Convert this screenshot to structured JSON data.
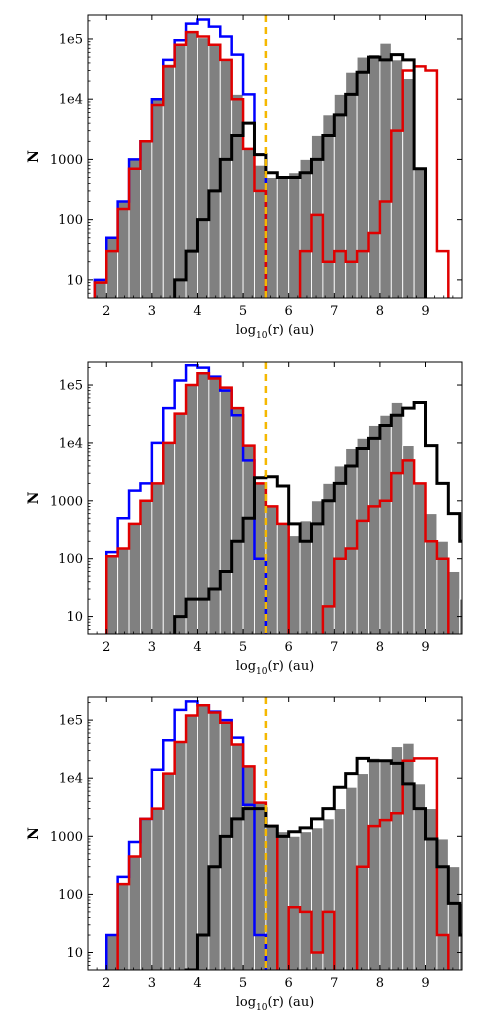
{
  "figure": {
    "panels": [
      {
        "ylabel": "N",
        "xlabel": "log10(r) (au)"
      },
      {
        "ylabel": "N",
        "xlabel": "log10(r) (au)"
      },
      {
        "ylabel": "N",
        "xlabel": "log10(r) (au)"
      }
    ]
  },
  "colors": {
    "gray": "#808080",
    "blue": "#0000ff",
    "red": "#e00000",
    "black": "#000000",
    "vline": "#f5b800"
  },
  "chart_data": [
    {
      "type": "histogram",
      "xlabel": "log10(r) (au)",
      "ylabel": "N",
      "xlim": [
        1.6,
        9.8
      ],
      "ylim": [
        5,
        250000
      ],
      "yscale": "log",
      "xticks": [
        2,
        3,
        4,
        5,
        6,
        7,
        8,
        9
      ],
      "yticks": [
        10,
        100,
        1000,
        10000,
        100000
      ],
      "ytick_labels": [
        "10",
        "100",
        "1000",
        "1e4",
        "1e5"
      ],
      "bin_width": 0.25,
      "vline": 5.5,
      "series": [
        {
          "color": "gray",
          "kind": "filled",
          "start": 1.75,
          "values": [
            10,
            50,
            200,
            1000,
            2000,
            10000,
            38000,
            80000,
            130000,
            105000,
            80000,
            45000,
            12000,
            1500,
            800,
            500,
            500,
            600,
            1000,
            2500,
            5500,
            12000,
            28000,
            50000,
            55000,
            85000,
            45000,
            22000,
            700,
            0
          ]
        },
        {
          "color": "blue",
          "kind": "step",
          "start": 1.75,
          "values": [
            10,
            50,
            200,
            1000,
            2000,
            10000,
            45000,
            95000,
            180000,
            210000,
            160000,
            110000,
            55000,
            12000,
            1200
          ]
        },
        {
          "color": "red",
          "kind": "step",
          "start": 1.75,
          "values": [
            9,
            30,
            150,
            700,
            2000,
            8000,
            35000,
            80000,
            130000,
            110000,
            80000,
            45000,
            10000,
            1500,
            300,
            0,
            0,
            0,
            30,
            120,
            20,
            30,
            20,
            30,
            60,
            200,
            3000,
            30000,
            35000,
            30000,
            30,
            0
          ]
        },
        {
          "color": "black",
          "kind": "step",
          "start": 3.5,
          "values": [
            10,
            30,
            100,
            300,
            1000,
            2500,
            4000,
            1200,
            600,
            500,
            500,
            600,
            1000,
            2500,
            5500,
            12000,
            28000,
            50000,
            45000,
            55000,
            45000,
            700
          ]
        }
      ]
    },
    {
      "type": "histogram",
      "xlabel": "log10(r) (au)",
      "ylabel": "N",
      "xlim": [
        1.6,
        9.8
      ],
      "ylim": [
        5,
        250000
      ],
      "yscale": "log",
      "xticks": [
        2,
        3,
        4,
        5,
        6,
        7,
        8,
        9
      ],
      "yticks": [
        10,
        100,
        1000,
        10000,
        100000
      ],
      "ytick_labels": [
        "10",
        "100",
        "1000",
        "1e4",
        "1e5"
      ],
      "bin_width": 0.25,
      "vline": 5.5,
      "series": [
        {
          "color": "gray",
          "kind": "filled",
          "start": 2.0,
          "values": [
            110,
            150,
            400,
            1000,
            2000,
            10000,
            32000,
            100000,
            160000,
            130000,
            90000,
            40000,
            9000,
            2000,
            800,
            400,
            250,
            450,
            1000,
            2000,
            4000,
            8000,
            12000,
            20000,
            30000,
            50000,
            9000,
            2000,
            600,
            200,
            60,
            20,
            5
          ]
        },
        {
          "color": "blue",
          "kind": "step",
          "start": 2.0,
          "values": [
            130,
            500,
            1500,
            2000,
            10000,
            40000,
            120000,
            220000,
            200000,
            140000,
            80000,
            30000,
            5000,
            100,
            0
          ]
        },
        {
          "color": "red",
          "kind": "step",
          "start": 2.0,
          "values": [
            110,
            150,
            400,
            1000,
            2000,
            10000,
            32000,
            100000,
            160000,
            130000,
            90000,
            40000,
            9000,
            2000,
            800,
            400,
            0,
            0,
            0,
            15,
            100,
            150,
            450,
            800,
            1000,
            3000,
            5000,
            2000,
            200,
            100,
            0
          ]
        },
        {
          "color": "black",
          "kind": "step",
          "start": 3.5,
          "values": [
            10,
            20,
            20,
            30,
            60,
            200,
            500,
            2500,
            2600,
            1800,
            400,
            200,
            400,
            1000,
            2000,
            4000,
            8000,
            12000,
            20000,
            30000,
            40000,
            50000,
            9000,
            2000,
            600,
            200,
            60,
            20,
            5
          ]
        }
      ]
    },
    {
      "type": "histogram",
      "xlabel": "log10(r) (au)",
      "ylabel": "N",
      "xlim": [
        1.6,
        9.8
      ],
      "ylim": [
        5,
        250000
      ],
      "yscale": "log",
      "xticks": [
        2,
        3,
        4,
        5,
        6,
        7,
        8,
        9
      ],
      "yticks": [
        10,
        100,
        1000,
        10000,
        100000
      ],
      "ytick_labels": [
        "10",
        "100",
        "1000",
        "1e4",
        "1e5"
      ],
      "bin_width": 0.25,
      "vline": 5.5,
      "series": [
        {
          "color": "gray",
          "kind": "filled",
          "start": 2.0,
          "values": [
            20,
            150,
            450,
            2000,
            3000,
            12000,
            42000,
            120000,
            180000,
            135000,
            90000,
            38000,
            16000,
            3800,
            1500,
            1200,
            1000,
            1200,
            1400,
            2000,
            3000,
            7000,
            12000,
            22000,
            20000,
            35000,
            40000,
            8000,
            3000,
            900,
            300,
            70,
            20,
            10
          ]
        },
        {
          "color": "blue",
          "kind": "step",
          "start": 2.0,
          "values": [
            20,
            200,
            800,
            2000,
            14000,
            45000,
            150000,
            210000,
            180000,
            140000,
            100000,
            50000,
            3500,
            20,
            0
          ]
        },
        {
          "color": "red",
          "kind": "step",
          "start": 2.25,
          "values": [
            150,
            450,
            2000,
            3000,
            12000,
            42000,
            120000,
            180000,
            135000,
            90000,
            38000,
            16000,
            3800,
            1500,
            0,
            60,
            50,
            10,
            50,
            0,
            0,
            300,
            1500,
            1900,
            2500,
            20000,
            22000,
            22000,
            20,
            0
          ]
        },
        {
          "color": "black",
          "kind": "step",
          "start": 3.75,
          "values": [
            5,
            20,
            300,
            1000,
            2000,
            3000,
            3000,
            1500,
            1000,
            1200,
            1400,
            2000,
            3000,
            7000,
            12000,
            22000,
            20000,
            20000,
            18000,
            8000,
            3000,
            900,
            300,
            70,
            20,
            10
          ]
        }
      ]
    }
  ]
}
